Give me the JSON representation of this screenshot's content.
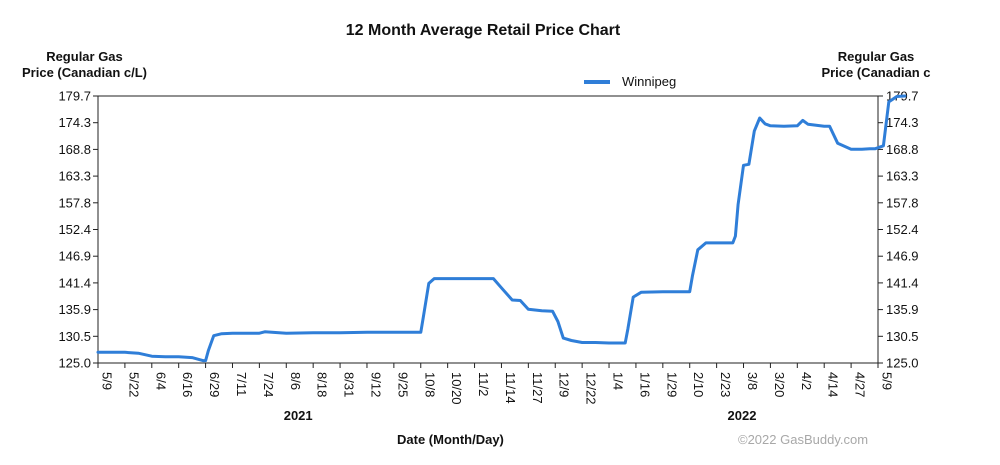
{
  "chart_data": {
    "type": "line",
    "title": "12 Month Average Retail Price Chart",
    "ylabel_left": [
      "Regular Gas",
      "Price (Canadian c/L)"
    ],
    "ylabel_right": [
      "Regular Gas",
      "Price (Canadian c"
    ],
    "xlabel": "Date (Month/Day)",
    "y_ticks": [
      "179.7",
      "174.3",
      "168.8",
      "163.3",
      "157.8",
      "152.4",
      "146.9",
      "141.4",
      "135.9",
      "130.5",
      "125.0"
    ],
    "ylim": [
      125.0,
      179.7
    ],
    "x_ticks": [
      "5/9",
      "5/22",
      "6/4",
      "6/16",
      "6/29",
      "7/11",
      "7/24",
      "8/6",
      "8/18",
      "8/31",
      "9/12",
      "9/25",
      "10/8",
      "10/20",
      "11/2",
      "11/14",
      "11/27",
      "12/9",
      "12/22",
      "1/4",
      "1/16",
      "1/29",
      "2/10",
      "2/23",
      "3/8",
      "3/20",
      "4/2",
      "4/14",
      "4/27",
      "5/9"
    ],
    "year_labels": [
      {
        "label": "2021",
        "at_tick": 7.5
      },
      {
        "label": "2022",
        "at_tick": 24
      }
    ],
    "grid": false,
    "legend_position": "top-right",
    "series": [
      {
        "name": "Winnipeg",
        "color": "#2f7ed8",
        "x": [
          0,
          0.5,
          1,
          1.5,
          2,
          2.5,
          3,
          3.5,
          3.9,
          4.0,
          4.1,
          4.3,
          4.6,
          5,
          6,
          6.2,
          7,
          8,
          9,
          10,
          11,
          12,
          12.1,
          12.3,
          12.5,
          13,
          14,
          14.5,
          14.7,
          15,
          15.4,
          15.7,
          16,
          16.5,
          16.9,
          17.1,
          17.3,
          17.6,
          18,
          18.5,
          19,
          19.6,
          19.7,
          19.9,
          20.2,
          21,
          22,
          22.1,
          22.3,
          22.6,
          23,
          23.6,
          23.7,
          23.8,
          24,
          24.2,
          24.4,
          24.6,
          24.8,
          25,
          25.5,
          26,
          26.2,
          26.4,
          27,
          27.2,
          27.5,
          28,
          28.4,
          28.7,
          28.9,
          29.2,
          29.4,
          29.7,
          30
        ],
        "values": [
          127.2,
          127.2,
          127.2,
          127.0,
          126.4,
          126.3,
          126.3,
          126.1,
          125.5,
          125.5,
          127.5,
          130.6,
          131.0,
          131.1,
          131.1,
          131.4,
          131.1,
          131.2,
          131.2,
          131.3,
          131.3,
          131.3,
          134.5,
          141.3,
          142.3,
          142.3,
          142.3,
          142.3,
          142.3,
          140.4,
          137.9,
          137.8,
          136.0,
          135.7,
          135.6,
          133.5,
          130.1,
          129.6,
          129.2,
          129.2,
          129.1,
          129.1,
          132.0,
          138.5,
          139.5,
          139.6,
          139.6,
          142.8,
          148.2,
          149.6,
          149.6,
          149.6,
          151.0,
          157.5,
          165.5,
          165.7,
          172.5,
          175.2,
          174.0,
          173.6,
          173.5,
          173.6,
          174.7,
          173.9,
          173.5,
          173.5,
          170.0,
          168.8,
          168.8,
          168.9,
          168.9,
          169.5,
          178.5,
          179.6,
          179.7
        ]
      }
    ],
    "credit": "©2022 GasBuddy.com"
  }
}
